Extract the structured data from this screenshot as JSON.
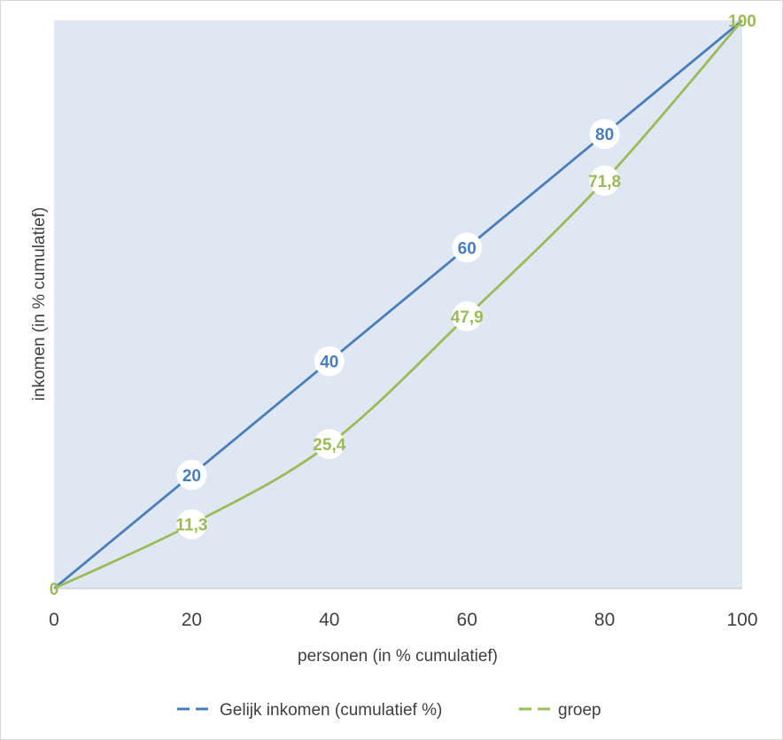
{
  "chart_data": {
    "type": "line",
    "title": "",
    "xlabel": "personen (in % cumulatief)",
    "ylabel": "inkomen (in % cumulatief)",
    "x": [
      0,
      20,
      40,
      60,
      80,
      100
    ],
    "xlim": [
      0,
      100
    ],
    "ylim": [
      0,
      100
    ],
    "x_ticks": [
      "0",
      "20",
      "40",
      "60",
      "80",
      "100"
    ],
    "grid": false,
    "legend_position": "bottom",
    "plot_background": "#dfe7f3",
    "series": [
      {
        "name": "Gelijk inkomen (cumulatief %)",
        "color": "#4a7ebb",
        "values": [
          0,
          20,
          40,
          60,
          80,
          100
        ],
        "labels": [
          "",
          "20",
          "40",
          "60",
          "80",
          ""
        ]
      },
      {
        "name": "groep",
        "color": "#9bbb59",
        "values": [
          0,
          11.3,
          25.4,
          47.9,
          71.8,
          100
        ],
        "labels": [
          "0",
          "11,3",
          "25,4",
          "47,9",
          "71,8",
          "100"
        ]
      }
    ]
  }
}
